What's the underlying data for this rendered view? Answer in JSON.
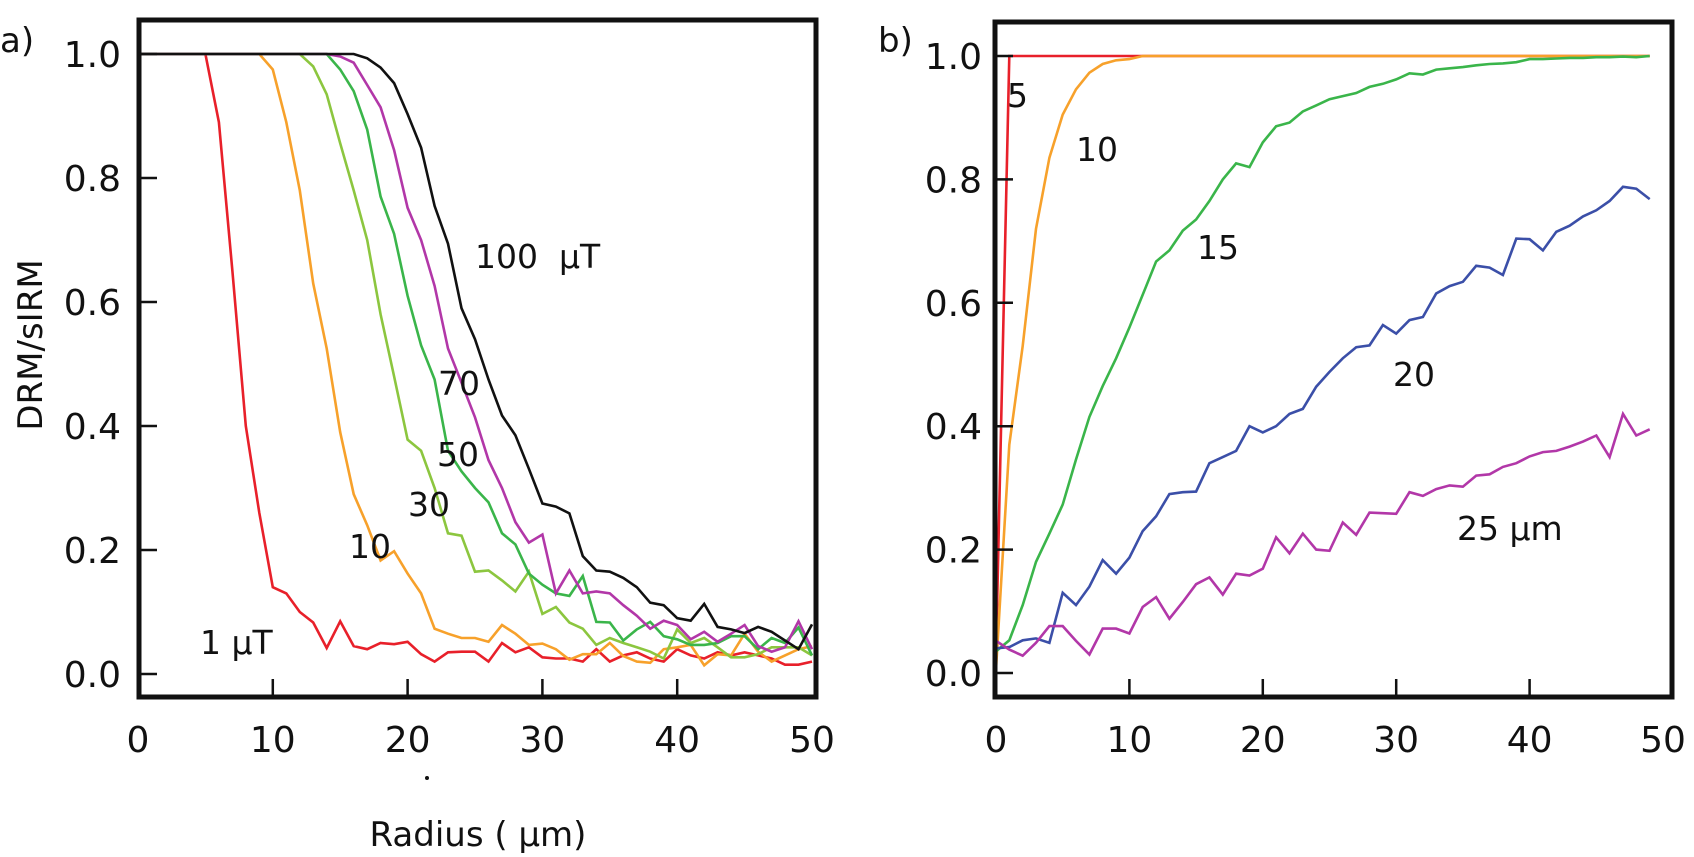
{
  "panel_labels": {
    "a": "a)",
    "b": "b)"
  },
  "y_axis_title": "DRM/sIRM",
  "x_axis_title": "Radius ( µm)",
  "chart_data": [
    {
      "type": "line",
      "panel": "a",
      "xlim": [
        0,
        50
      ],
      "ylim": [
        0,
        1.0
      ],
      "xticks": [
        "0",
        "10",
        "20",
        "30",
        "40",
        "50"
      ],
      "yticks": [
        "0.0",
        "0.2",
        "0.4",
        "0.6",
        "0.8",
        "1.0"
      ],
      "xlabel": "Radius ( µm)",
      "ylabel": "DRM/sIRM",
      "grid": false,
      "x": [
        0,
        1,
        2,
        3,
        4,
        5,
        6,
        7,
        8,
        9,
        10,
        11,
        12,
        13,
        14,
        15,
        16,
        17,
        18,
        19,
        20,
        21,
        22,
        23,
        24,
        25,
        26,
        27,
        28,
        29,
        30,
        31,
        32,
        33,
        34,
        35,
        36,
        37,
        38,
        39,
        40,
        41,
        42,
        43,
        44,
        45,
        46,
        47,
        48,
        49,
        50
      ],
      "series": [
        {
          "name": "1 µT",
          "color": "#e8202a",
          "values": [
            1,
            1,
            1,
            1,
            1,
            1,
            0.89,
            0.65,
            0.4,
            0.26,
            0.14,
            0.13,
            0.1,
            0.083,
            0.042,
            0.085,
            0.045,
            0.04,
            0.05,
            0.048,
            0.052,
            0.032,
            0.02,
            0.035,
            0.036,
            0.036,
            0.02,
            0.05,
            0.035,
            0.043,
            0.027,
            0.025,
            0.025,
            0.02,
            0.04,
            0.02,
            0.03,
            0.035,
            0.025,
            0.02,
            0.04,
            0.03,
            0.025,
            0.035,
            0.03,
            0.035,
            0.03,
            0.025,
            0.015,
            0.015,
            0.02
          ]
        },
        {
          "name": "10",
          "color": "#f7a12b",
          "values": [
            1,
            1,
            1,
            1,
            1,
            1,
            1,
            1,
            1,
            1,
            0.975,
            0.89,
            0.78,
            0.63,
            0.525,
            0.39,
            0.29,
            0.24,
            0.183,
            0.198,
            0.162,
            0.13,
            0.073,
            0.065,
            0.058,
            0.058,
            0.052,
            0.079,
            0.065,
            0.047,
            0.049,
            0.04,
            0.023,
            0.032,
            0.032,
            0.05,
            0.029,
            0.02,
            0.018,
            0.04,
            0.043,
            0.047,
            0.014,
            0.032,
            0.03,
            0.065,
            0.036,
            0.02,
            0.03,
            0.04,
            0.045
          ]
        },
        {
          "name": "30",
          "color": "#8cc63f",
          "values": [
            1,
            1,
            1,
            1,
            1,
            1,
            1,
            1,
            1,
            1,
            1,
            1,
            1,
            0.98,
            0.935,
            0.856,
            0.78,
            0.7,
            0.58,
            0.48,
            0.378,
            0.36,
            0.3,
            0.227,
            0.223,
            0.165,
            0.167,
            0.151,
            0.133,
            0.165,
            0.097,
            0.108,
            0.083,
            0.073,
            0.047,
            0.058,
            0.05,
            0.043,
            0.036,
            0.025,
            0.072,
            0.05,
            0.058,
            0.043,
            0.027,
            0.027,
            0.032,
            0.043,
            0.043,
            0.043,
            0.03
          ]
        },
        {
          "name": "50",
          "color": "#3ab54a",
          "values": [
            1,
            1,
            1,
            1,
            1,
            1,
            1,
            1,
            1,
            1,
            1,
            1,
            1,
            1,
            1,
            0.975,
            0.94,
            0.878,
            0.77,
            0.71,
            0.61,
            0.53,
            0.475,
            0.36,
            0.327,
            0.3,
            0.277,
            0.227,
            0.209,
            0.162,
            0.144,
            0.13,
            0.126,
            0.158,
            0.084,
            0.083,
            0.054,
            0.072,
            0.084,
            0.061,
            0.056,
            0.047,
            0.047,
            0.05,
            0.061,
            0.061,
            0.04,
            0.058,
            0.05,
            0.075,
            0.03
          ]
        },
        {
          "name": "70",
          "color": "#b237a8",
          "values": [
            1,
            1,
            1,
            1,
            1,
            1,
            1,
            1,
            1,
            1,
            1,
            1,
            1,
            1,
            1,
            0.996,
            0.986,
            0.95,
            0.914,
            0.845,
            0.752,
            0.7,
            0.626,
            0.525,
            0.47,
            0.414,
            0.345,
            0.3,
            0.245,
            0.212,
            0.225,
            0.13,
            0.167,
            0.13,
            0.133,
            0.13,
            0.111,
            0.094,
            0.073,
            0.086,
            0.079,
            0.056,
            0.068,
            0.052,
            0.065,
            0.079,
            0.045,
            0.036,
            0.043,
            0.085,
            0.04
          ]
        },
        {
          "name": "100  µT",
          "color": "#111111",
          "values": [
            1,
            1,
            1,
            1,
            1,
            1,
            1,
            1,
            1,
            1,
            1,
            1,
            1,
            1,
            1,
            1,
            1,
            0.993,
            0.978,
            0.953,
            0.903,
            0.849,
            0.755,
            0.694,
            0.59,
            0.54,
            0.475,
            0.417,
            0.385,
            0.331,
            0.275,
            0.27,
            0.259,
            0.19,
            0.167,
            0.165,
            0.155,
            0.14,
            0.115,
            0.111,
            0.09,
            0.086,
            0.113,
            0.076,
            0.072,
            0.066,
            0.076,
            0.068,
            0.054,
            0.04,
            0.08
          ]
        }
      ]
    },
    {
      "type": "line",
      "panel": "b",
      "xlim": [
        0,
        50
      ],
      "ylim": [
        0,
        1.0
      ],
      "xticks": [
        "0",
        "10",
        "20",
        "30",
        "40",
        "50"
      ],
      "yticks": [
        "0.0",
        "0.2",
        "0.4",
        "0.6",
        "0.8",
        "1.0"
      ],
      "grid": false,
      "x": [
        0,
        1,
        2,
        3,
        4,
        5,
        6,
        7,
        8,
        9,
        10,
        11,
        12,
        13,
        14,
        15,
        16,
        17,
        18,
        19,
        20,
        21,
        22,
        23,
        24,
        25,
        26,
        27,
        28,
        29,
        30,
        31,
        32,
        33,
        34,
        35,
        36,
        37,
        38,
        39,
        40,
        41,
        42,
        43,
        44,
        45,
        46,
        47,
        48,
        49
      ],
      "series": [
        {
          "name": "5",
          "color": "#e8202a",
          "values": [
            0.03,
            1,
            1,
            1,
            1,
            1,
            1,
            1,
            1,
            1,
            1,
            1,
            1,
            1,
            1,
            1,
            1,
            1,
            1,
            1,
            1,
            1,
            1,
            1,
            1,
            1,
            1,
            1,
            1,
            1,
            1,
            1,
            1,
            1,
            1,
            1,
            1,
            1,
            1,
            1,
            1,
            1,
            1,
            1,
            1,
            1,
            1,
            1,
            1,
            1
          ]
        },
        {
          "name": "10",
          "color": "#f7a12b",
          "values": [
            0.006,
            0.37,
            0.53,
            0.72,
            0.835,
            0.905,
            0.946,
            0.973,
            0.987,
            0.993,
            0.995,
            1,
            1,
            1,
            1,
            1,
            1,
            1,
            1,
            1,
            1,
            1,
            1,
            1,
            1,
            1,
            1,
            1,
            1,
            1,
            1,
            1,
            1,
            1,
            1,
            1,
            1,
            1,
            1,
            1,
            1,
            1,
            1,
            1,
            1,
            1,
            1,
            1,
            1,
            1
          ]
        },
        {
          "name": "15",
          "color": "#3ab54a",
          "values": [
            0.035,
            0.053,
            0.11,
            0.18,
            0.226,
            0.273,
            0.346,
            0.415,
            0.465,
            0.51,
            0.56,
            0.613,
            0.667,
            0.685,
            0.717,
            0.735,
            0.765,
            0.8,
            0.826,
            0.82,
            0.86,
            0.886,
            0.892,
            0.91,
            0.92,
            0.93,
            0.935,
            0.94,
            0.95,
            0.955,
            0.962,
            0.972,
            0.97,
            0.978,
            0.98,
            0.982,
            0.985,
            0.987,
            0.988,
            0.99,
            0.995,
            0.995,
            0.996,
            0.997,
            0.997,
            0.998,
            0.998,
            0.999,
            0.998,
            1.0
          ]
        },
        {
          "name": "20",
          "color": "#3b4fa8",
          "values": [
            0.04,
            0.042,
            0.053,
            0.056,
            0.049,
            0.13,
            0.11,
            0.14,
            0.183,
            0.161,
            0.187,
            0.23,
            0.254,
            0.29,
            0.293,
            0.294,
            0.34,
            0.35,
            0.36,
            0.4,
            0.39,
            0.4,
            0.42,
            0.428,
            0.464,
            0.488,
            0.51,
            0.528,
            0.531,
            0.564,
            0.55,
            0.572,
            0.577,
            0.615,
            0.627,
            0.634,
            0.66,
            0.657,
            0.645,
            0.704,
            0.703,
            0.685,
            0.715,
            0.725,
            0.74,
            0.75,
            0.765,
            0.788,
            0.785,
            0.768
          ]
        },
        {
          "name": "25 µm",
          "color": "#b237a8",
          "values": [
            0.052,
            0.038,
            0.028,
            0.049,
            0.076,
            0.076,
            0.052,
            0.03,
            0.072,
            0.072,
            0.064,
            0.107,
            0.123,
            0.088,
            0.115,
            0.144,
            0.155,
            0.127,
            0.161,
            0.158,
            0.169,
            0.22,
            0.194,
            0.226,
            0.2,
            0.198,
            0.244,
            0.224,
            0.26,
            0.259,
            0.258,
            0.293,
            0.287,
            0.298,
            0.304,
            0.302,
            0.32,
            0.322,
            0.334,
            0.34,
            0.351,
            0.358,
            0.36,
            0.367,
            0.375,
            0.385,
            0.35,
            0.42,
            0.385,
            0.395
          ]
        }
      ]
    }
  ]
}
